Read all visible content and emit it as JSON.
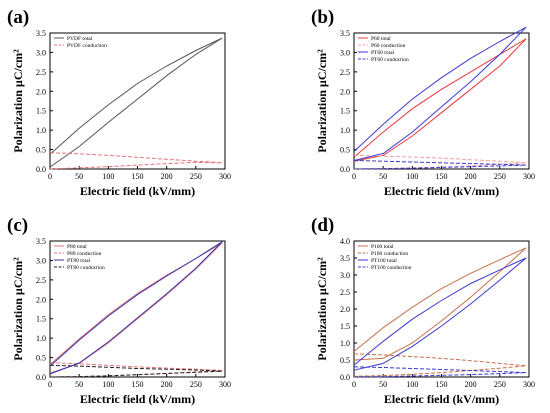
{
  "chart_data": [
    {
      "type": "line",
      "panel_label": "(a)",
      "xlabel": "Electric field (kV/mm)",
      "ylabel": "Polarization  µC/cm²",
      "xlim": [
        0,
        300
      ],
      "ylim": [
        0,
        3.5
      ],
      "xticks": [
        "0",
        "50",
        "100",
        "150",
        "200",
        "250",
        "300"
      ],
      "yticks": [
        "0.0",
        "0.5",
        "1.0",
        "1.5",
        "2.0",
        "2.5",
        "3.0",
        "3.5"
      ],
      "legend_position": "top-left",
      "series": [
        {
          "name": "PVDF total",
          "color": "#555555",
          "dash": false,
          "x": [
            0,
            50,
            100,
            150,
            200,
            250,
            295,
            250,
            200,
            150,
            100,
            50,
            0
          ],
          "y": [
            0.38,
            1.05,
            1.65,
            2.2,
            2.65,
            3.05,
            3.37,
            2.95,
            2.4,
            1.8,
            1.2,
            0.58,
            0.05
          ]
        },
        {
          "name": "PVDF conduction",
          "color": "#e8737a",
          "dash": true,
          "x": [
            0,
            50,
            100,
            150,
            200,
            250,
            295,
            250,
            200,
            150,
            100,
            50,
            0
          ],
          "y": [
            0.42,
            0.39,
            0.35,
            0.3,
            0.25,
            0.2,
            0.16,
            0.17,
            0.14,
            0.1,
            0.06,
            0.03,
            0.0
          ]
        }
      ]
    },
    {
      "type": "line",
      "panel_label": "(b)",
      "xlabel": "Electric field (kV/mm)",
      "ylabel": "Polarization  µC/cm²",
      "xlim": [
        0,
        300
      ],
      "ylim": [
        0,
        3.5
      ],
      "xticks": [
        "0",
        "50",
        "100",
        "150",
        "200",
        "250",
        "300"
      ],
      "yticks": [
        "0.0",
        "0.5",
        "1.0",
        "1.5",
        "2.0",
        "2.5",
        "3.0",
        "3.5"
      ],
      "legend_position": "top-left",
      "series": [
        {
          "name": "P60 total",
          "color": "#e8383d",
          "dash": false,
          "x": [
            0,
            50,
            100,
            150,
            200,
            250,
            295,
            250,
            200,
            150,
            100,
            50,
            0
          ],
          "y": [
            0.3,
            0.95,
            1.55,
            2.05,
            2.5,
            2.95,
            3.35,
            2.65,
            2.05,
            1.45,
            0.85,
            0.35,
            0.2
          ]
        },
        {
          "name": "P60 conduction",
          "color": "#f0a0a0",
          "dash": true,
          "x": [
            0,
            50,
            100,
            150,
            200,
            250,
            295,
            250,
            200,
            150,
            100,
            50,
            0
          ],
          "y": [
            0.35,
            0.33,
            0.31,
            0.28,
            0.24,
            0.2,
            0.16,
            0.12,
            0.08,
            0.05,
            0.03,
            0.01,
            0.0
          ]
        },
        {
          "name": "PT60 total",
          "color": "#3a3ad0",
          "dash": false,
          "x": [
            0,
            50,
            100,
            150,
            200,
            250,
            295,
            250,
            200,
            150,
            100,
            50,
            0
          ],
          "y": [
            0.45,
            1.15,
            1.8,
            2.35,
            2.85,
            3.28,
            3.65,
            2.95,
            2.25,
            1.6,
            0.95,
            0.4,
            0.22
          ]
        },
        {
          "name": "PT60 conduction",
          "color": "#3a3ad0",
          "dash": true,
          "x": [
            0,
            50,
            100,
            150,
            200,
            250,
            295,
            250,
            200,
            150,
            100,
            50,
            0
          ],
          "y": [
            0.22,
            0.2,
            0.18,
            0.16,
            0.14,
            0.12,
            0.1,
            0.08,
            0.06,
            0.04,
            0.02,
            0.01,
            0.0
          ]
        }
      ]
    },
    {
      "type": "line",
      "panel_label": "(c)",
      "xlabel": "Electric field (kV/mm)",
      "ylabel": "Polarization  µC/cm²",
      "xlim": [
        0,
        300
      ],
      "ylim": [
        0,
        3.5
      ],
      "xticks": [
        "0",
        "50",
        "100",
        "150",
        "200",
        "250",
        "300"
      ],
      "yticks": [
        "0.0",
        "0.5",
        "1.0",
        "1.5",
        "2.0",
        "2.5",
        "3.0",
        "3.5"
      ],
      "legend_position": "top-left",
      "series": [
        {
          "name": "P80 total",
          "color": "#e8737a",
          "dash": false,
          "x": [
            0,
            50,
            100,
            150,
            200,
            250,
            295,
            250,
            200,
            150,
            100,
            50,
            0
          ],
          "y": [
            0.32,
            0.98,
            1.6,
            2.15,
            2.62,
            3.05,
            3.45,
            2.78,
            2.12,
            1.5,
            0.88,
            0.35,
            0.1
          ]
        },
        {
          "name": "P80 conduction",
          "color": "#e8737a",
          "dash": true,
          "x": [
            0,
            50,
            100,
            150,
            200,
            250,
            295,
            250,
            200,
            150,
            100,
            50,
            0
          ],
          "y": [
            0.37,
            0.34,
            0.3,
            0.26,
            0.23,
            0.2,
            0.17,
            0.13,
            0.09,
            0.06,
            0.03,
            0.01,
            0.0
          ]
        },
        {
          "name": "PT80 total",
          "color": "#3333aa",
          "dash": false,
          "x": [
            0,
            50,
            100,
            150,
            200,
            250,
            295,
            250,
            200,
            150,
            100,
            50,
            0
          ],
          "y": [
            0.28,
            0.95,
            1.57,
            2.12,
            2.6,
            3.05,
            3.48,
            2.8,
            2.14,
            1.52,
            0.9,
            0.36,
            0.08
          ]
        },
        {
          "name": "PT80 conduction",
          "color": "#222222",
          "dash": true,
          "x": [
            0,
            50,
            100,
            150,
            200,
            250,
            295,
            250,
            200,
            150,
            100,
            50,
            0
          ],
          "y": [
            0.3,
            0.28,
            0.25,
            0.22,
            0.2,
            0.18,
            0.15,
            0.12,
            0.09,
            0.06,
            0.03,
            0.01,
            0.0
          ]
        }
      ]
    },
    {
      "type": "line",
      "panel_label": "(d)",
      "xlabel": "Electric field (kV/mm)",
      "ylabel": "Polarization  µC/cm²",
      "xlim": [
        0,
        300
      ],
      "ylim": [
        0,
        4.0
      ],
      "xticks": [
        "0",
        "50",
        "100",
        "150",
        "200",
        "250",
        "300"
      ],
      "yticks": [
        "0.0",
        "0.5",
        "1.0",
        "1.5",
        "2.0",
        "2.5",
        "3.0",
        "3.5",
        "4.0"
      ],
      "legend_position": "top-left",
      "series": [
        {
          "name": "P100 total",
          "color": "#c8704a",
          "dash": false,
          "x": [
            0,
            50,
            100,
            150,
            200,
            250,
            295,
            250,
            200,
            150,
            100,
            50,
            0
          ],
          "y": [
            0.75,
            1.45,
            2.05,
            2.6,
            3.05,
            3.45,
            3.8,
            3.1,
            2.35,
            1.65,
            1.0,
            0.55,
            0.5
          ]
        },
        {
          "name": "P100 conduction",
          "color": "#c8704a",
          "dash": true,
          "x": [
            0,
            50,
            100,
            150,
            200,
            250,
            295,
            250,
            200,
            150,
            100,
            50,
            0
          ],
          "y": [
            0.68,
            0.65,
            0.6,
            0.55,
            0.48,
            0.4,
            0.33,
            0.26,
            0.19,
            0.13,
            0.08,
            0.04,
            0.02
          ]
        },
        {
          "name": "PT100 total",
          "color": "#3a3ad0",
          "dash": false,
          "x": [
            0,
            50,
            100,
            150,
            200,
            250,
            295,
            250,
            200,
            150,
            100,
            50,
            0
          ],
          "y": [
            0.35,
            1.05,
            1.7,
            2.25,
            2.75,
            3.15,
            3.5,
            2.85,
            2.15,
            1.5,
            0.9,
            0.4,
            0.2
          ]
        },
        {
          "name": "PT100 conduction",
          "color": "#3a3ad0",
          "dash": true,
          "x": [
            0,
            50,
            100,
            150,
            200,
            250,
            295,
            250,
            200,
            150,
            100,
            50,
            0
          ],
          "y": [
            0.3,
            0.28,
            0.25,
            0.22,
            0.19,
            0.16,
            0.13,
            0.1,
            0.07,
            0.05,
            0.03,
            0.01,
            0.0
          ]
        }
      ]
    }
  ]
}
